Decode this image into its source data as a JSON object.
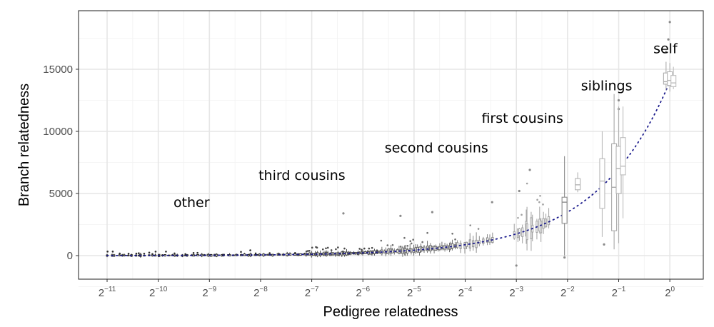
{
  "chart_data": {
    "type": "boxplot",
    "xlabel": "Pedigree relatedness",
    "ylabel": "Branch relatedness",
    "x_scale": "log2",
    "x_ticks": [
      {
        "value": 0.00048828125,
        "base": "2",
        "exp": "−11"
      },
      {
        "value": 0.0009765625,
        "base": "2",
        "exp": "−10"
      },
      {
        "value": 0.001953125,
        "base": "2",
        "exp": "−9"
      },
      {
        "value": 0.00390625,
        "base": "2",
        "exp": "−8"
      },
      {
        "value": 0.0078125,
        "base": "2",
        "exp": "−7"
      },
      {
        "value": 0.015625,
        "base": "2",
        "exp": "−6"
      },
      {
        "value": 0.03125,
        "base": "2",
        "exp": "−5"
      },
      {
        "value": 0.0625,
        "base": "2",
        "exp": "−4"
      },
      {
        "value": 0.125,
        "base": "2",
        "exp": "−3"
      },
      {
        "value": 0.25,
        "base": "2",
        "exp": "−2"
      },
      {
        "value": 0.5,
        "base": "2",
        "exp": "−1"
      },
      {
        "value": 1,
        "base": "2",
        "exp": "0"
      }
    ],
    "y_ticks": [
      {
        "value": 0,
        "label": "0"
      },
      {
        "value": 5000,
        "label": "5000"
      },
      {
        "value": 10000,
        "label": "10000"
      },
      {
        "value": 15000,
        "label": "15000"
      }
    ],
    "ylim": [
      -2000,
      19500
    ],
    "grid": true,
    "theme": "bw",
    "reference_line": {
      "style": "dotted",
      "color": "#1a1a8c",
      "slope": 14000
    },
    "annotations": [
      {
        "text": "other",
        "x": 0.0012,
        "y": 3900
      },
      {
        "text": "third cousins",
        "x": 0.0038,
        "y": 6100
      },
      {
        "text": "second cousins",
        "x": 0.021,
        "y": 8300
      },
      {
        "text": "first cousins",
        "x": 0.078,
        "y": 10700
      },
      {
        "text": "siblings",
        "x": 0.3,
        "y": 13300
      },
      {
        "text": "self",
        "x": 0.8,
        "y": 16300
      }
    ],
    "groups": [
      {
        "label": "other",
        "x_min": 0.00048828125,
        "x_max": 0.0072,
        "n": 60,
        "median_per_x": 14000,
        "spread": 90,
        "color": "#2b2b2b"
      },
      {
        "label": "third cousins",
        "x_min": 0.0072,
        "x_max": 0.02,
        "n": 45,
        "median_per_x": 14000,
        "spread": 160,
        "color": "#4a4a4a"
      },
      {
        "label": "second cousins",
        "x_min": 0.02,
        "x_max": 0.055,
        "n": 40,
        "median_per_x": 14000,
        "spread": 280,
        "color": "#6e6e6e"
      },
      {
        "label": "first cousins",
        "x_min": 0.055,
        "x_max": 0.094,
        "n": 12,
        "median_per_x": 14000,
        "spread": 420,
        "color": "#8c8c8c"
      },
      {
        "label": "first cousins",
        "x_min": 0.12,
        "x_max": 0.2,
        "n": 14,
        "median_per_x": 14000,
        "spread": 900,
        "color": "#a0a0a0"
      }
    ],
    "boxes": [
      {
        "x": 0.24,
        "q1": 2600,
        "median": 4300,
        "q3": 4700,
        "lower": 0,
        "upper": 8000,
        "color": "#8c8c8c"
      },
      {
        "x": 0.287,
        "q1": 5300,
        "median": 5700,
        "q3": 6200,
        "lower": 5100,
        "upper": 6700,
        "color": "#b4b4b4"
      },
      {
        "x": 0.4,
        "q1": 3800,
        "median": 6000,
        "q3": 7800,
        "lower": 1500,
        "upper": 10000,
        "color": "#bbbbbb"
      },
      {
        "x": 0.47,
        "q1": 2000,
        "median": 5500,
        "q3": 9000,
        "lower": 500,
        "upper": 13000,
        "color": "#a8a8a8"
      },
      {
        "x": 0.5,
        "q1": 5000,
        "median": 7000,
        "q3": 8800,
        "lower": 1000,
        "upper": 12000,
        "color": "#b0b0b0"
      },
      {
        "x": 0.53,
        "q1": 6500,
        "median": 7200,
        "q3": 9500,
        "lower": 3000,
        "upper": 12000,
        "color": "#bcbcbc"
      },
      {
        "x": 0.95,
        "q1": 13800,
        "median": 14000,
        "q3": 14700,
        "lower": 13300,
        "upper": 15600,
        "color": "#aaaaaa"
      },
      {
        "x": 1.0,
        "q1": 13700,
        "median": 14100,
        "q3": 14800,
        "lower": 13200,
        "upper": 15500,
        "color": "#b5b5b5"
      },
      {
        "x": 1.05,
        "q1": 13600,
        "median": 13900,
        "q3": 14500,
        "lower": 13400,
        "upper": 15200,
        "color": "#bdbdbd"
      }
    ],
    "outliers": [
      {
        "x": 1.0,
        "y": 18800
      },
      {
        "x": 0.98,
        "y": 17400
      },
      {
        "x": 0.95,
        "y": 16400
      },
      {
        "x": 0.5,
        "y": 12500
      },
      {
        "x": 0.5,
        "y": 11800
      },
      {
        "x": 0.15,
        "y": 6900
      },
      {
        "x": 0.13,
        "y": 5200
      },
      {
        "x": 0.125,
        "y": -800
      },
      {
        "x": 0.09,
        "y": 4300
      },
      {
        "x": 0.04,
        "y": 3500
      },
      {
        "x": 0.012,
        "y": 3400
      },
      {
        "x": 0.026,
        "y": 3200
      },
      {
        "x": 0.24,
        "y": -150
      },
      {
        "x": 0.41,
        "y": 900
      }
    ]
  }
}
